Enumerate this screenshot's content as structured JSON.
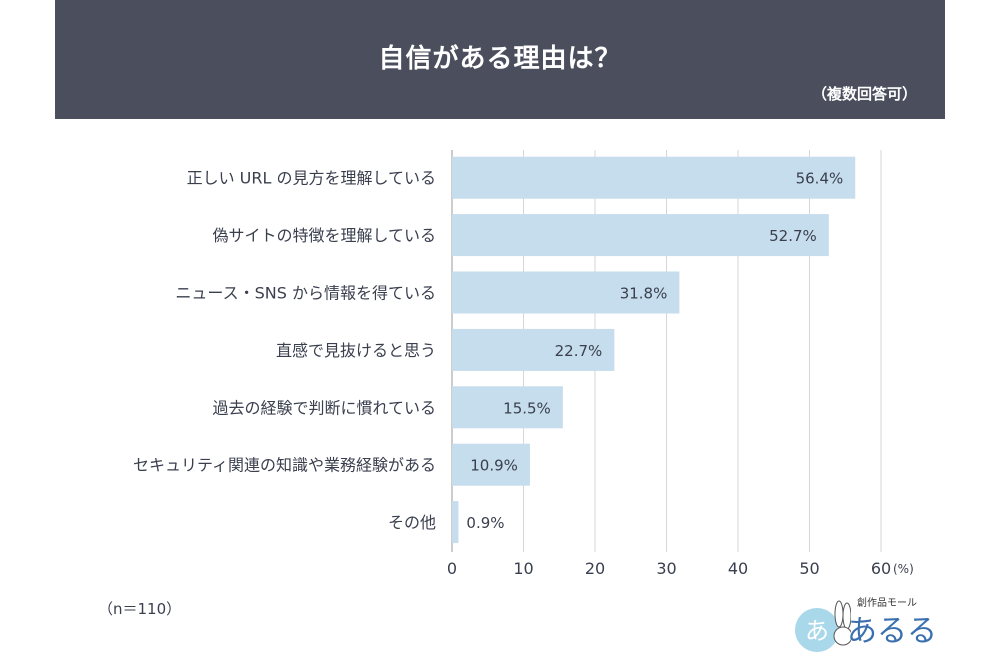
{
  "header": {
    "title": "自信がある理由は？",
    "subtitle": "（複数回答可）"
  },
  "footnote": "（n＝110）",
  "logo": {
    "tagline": "創作品モール",
    "name": "あるる"
  },
  "colors": {
    "header_bg": "#4a4e5d",
    "bar": "#c5ddec",
    "grid": "#d6d6d6",
    "text": "#3a3f4e"
  },
  "chart_data": {
    "type": "bar",
    "orientation": "horizontal",
    "categories": [
      "正しい URL の見方を理解している",
      "偽サイトの特徴を理解している",
      "ニュース・SNS から情報を得ている",
      "直感で見抜けると思う",
      "過去の経験で判断に慣れている",
      "セキュリティ関連の知識や業務経験がある",
      "その他"
    ],
    "values": [
      56.4,
      52.7,
      31.8,
      22.7,
      15.5,
      10.9,
      0.9
    ],
    "value_labels": [
      "56.4%",
      "52.7%",
      "31.8%",
      "22.7%",
      "15.5%",
      "10.9%",
      "0.9%"
    ],
    "xlim": [
      0,
      60
    ],
    "xticks": [
      0,
      10,
      20,
      30,
      40,
      50,
      60
    ],
    "xtick_labels": [
      "0",
      "10",
      "20",
      "30",
      "40",
      "50",
      "60"
    ],
    "unit_label": "(%)",
    "grid": true
  }
}
